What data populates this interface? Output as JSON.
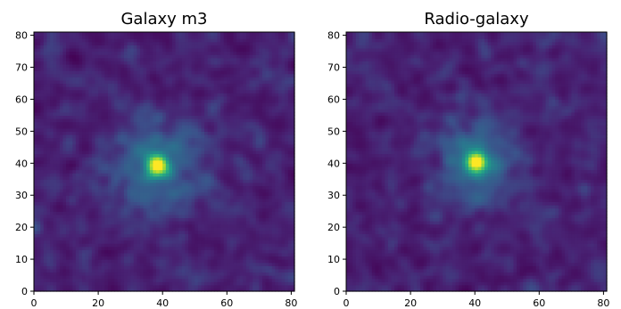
{
  "chart_data": [
    {
      "type": "heatmap",
      "title": "Galaxy m3",
      "xlim": [
        0,
        81
      ],
      "ylim": [
        0,
        81
      ],
      "xticks": [
        0,
        20,
        40,
        60,
        80
      ],
      "yticks": [
        0,
        10,
        20,
        30,
        40,
        50,
        60,
        70,
        80
      ],
      "colormap": "viridis",
      "grid": false,
      "source_peak": {
        "x": 38,
        "y": 39
      },
      "colors": {
        "low": "#440154",
        "mid": "#21918c",
        "high": "#fde725"
      }
    },
    {
      "type": "heatmap",
      "title": "Radio-galaxy",
      "xlim": [
        0,
        81
      ],
      "ylim": [
        0,
        81
      ],
      "xticks": [
        0,
        20,
        40,
        60,
        80
      ],
      "yticks": [
        0,
        10,
        20,
        30,
        40,
        50,
        60,
        70,
        80
      ],
      "colormap": "viridis",
      "grid": false,
      "source_peak": {
        "x": 40,
        "y": 40
      },
      "colors": {
        "low": "#440154",
        "mid": "#21918c",
        "high": "#fde725"
      }
    }
  ]
}
